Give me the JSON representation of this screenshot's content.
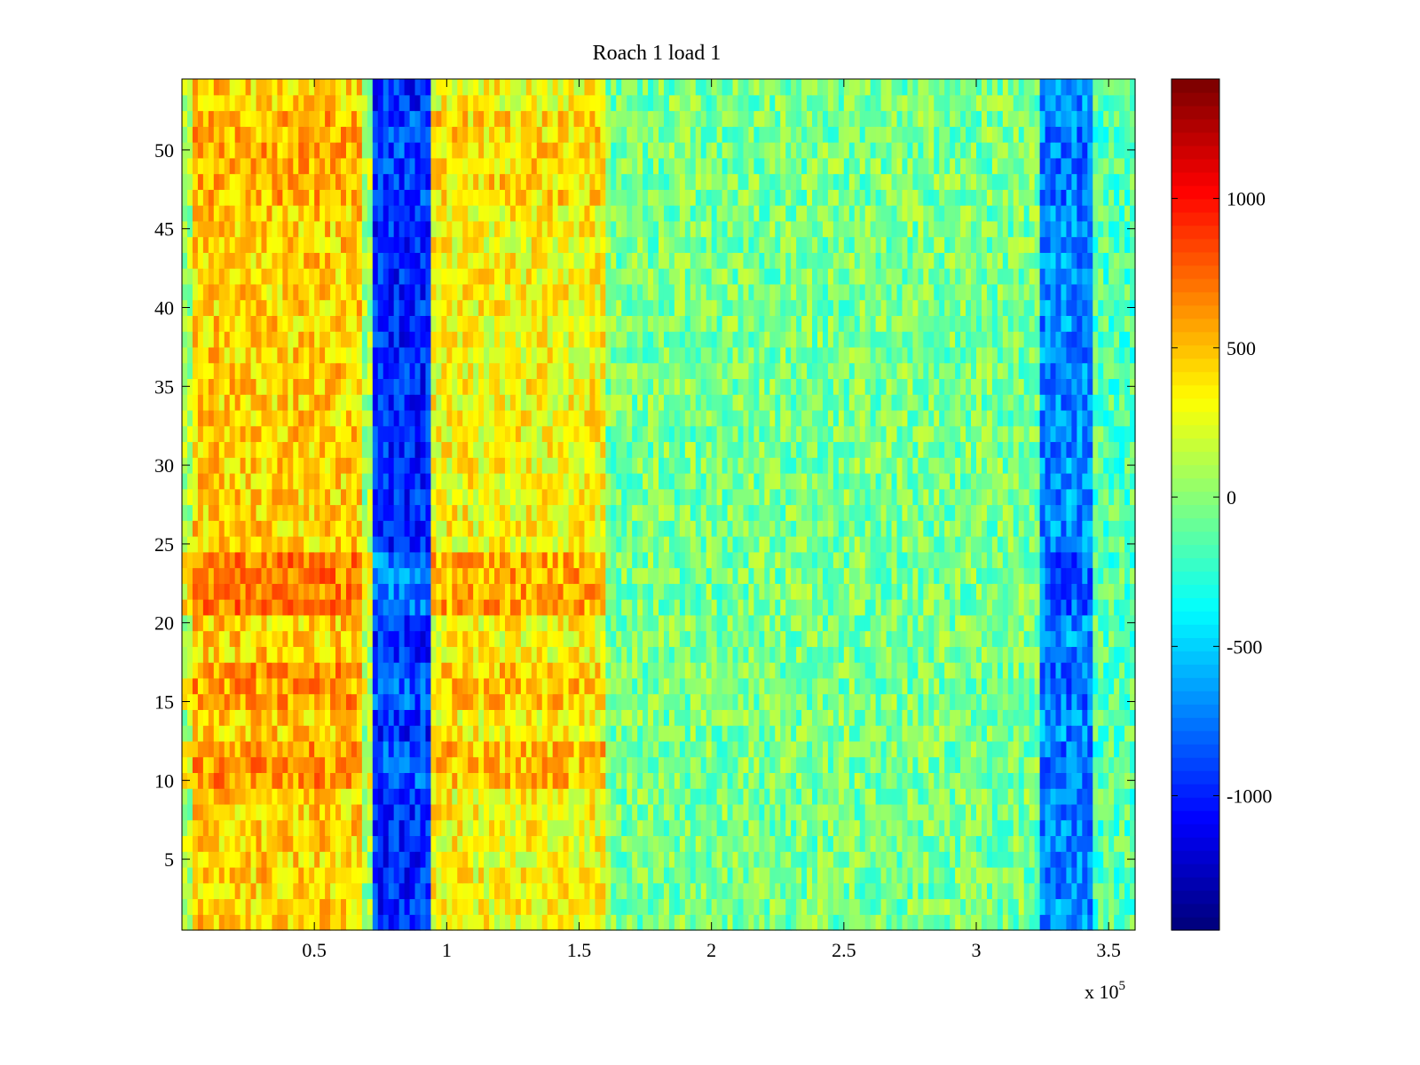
{
  "chart_data": {
    "type": "heatmap",
    "title": "Roach 1 load 1",
    "xlabel": "",
    "ylabel": "",
    "x_range": [
      0,
      360000
    ],
    "y_range": [
      0.5,
      54.5
    ],
    "x_ticks": [
      50000,
      100000,
      150000,
      200000,
      250000,
      300000,
      350000
    ],
    "x_tick_labels": [
      "0.5",
      "1",
      "1.5",
      "2",
      "2.5",
      "3",
      "3.5"
    ],
    "x_exponent_label": {
      "base": "x 10",
      "power": "5"
    },
    "y_ticks": [
      5,
      10,
      15,
      20,
      25,
      30,
      35,
      40,
      45,
      50
    ],
    "y_tick_labels": [
      "5",
      "10",
      "15",
      "20",
      "25",
      "30",
      "35",
      "40",
      "45",
      "50"
    ],
    "colorbar": {
      "range": [
        -1450,
        1400
      ],
      "ticks": [
        1000,
        500,
        0,
        -500,
        -1000
      ],
      "tick_labels": [
        "1000",
        "500",
        "0",
        "-500",
        "-1000"
      ],
      "colormap": "jet"
    },
    "rows": 54,
    "column_bands": [
      {
        "x_start": 0,
        "x_end": 5000,
        "value": 100
      },
      {
        "x_start": 5000,
        "x_end": 69000,
        "value": 450
      },
      {
        "x_start": 69000,
        "x_end": 72000,
        "value": 50
      },
      {
        "x_start": 72000,
        "x_end": 95000,
        "value": -1000
      },
      {
        "x_start": 95000,
        "x_end": 160000,
        "value": 320
      },
      {
        "x_start": 160000,
        "x_end": 325000,
        "value": -50
      },
      {
        "x_start": 325000,
        "x_end": 345000,
        "value": -700
      },
      {
        "x_start": 345000,
        "x_end": 360000,
        "value": -150
      }
    ],
    "row_offsets": [
      {
        "y_start": 21,
        "y_end": 24,
        "value": 250
      },
      {
        "y_start": 10,
        "y_end": 12,
        "value": 180
      },
      {
        "y_start": 15,
        "y_end": 17,
        "value": 150
      },
      {
        "y_start": 47,
        "y_end": 52,
        "value": 100
      }
    ]
  }
}
